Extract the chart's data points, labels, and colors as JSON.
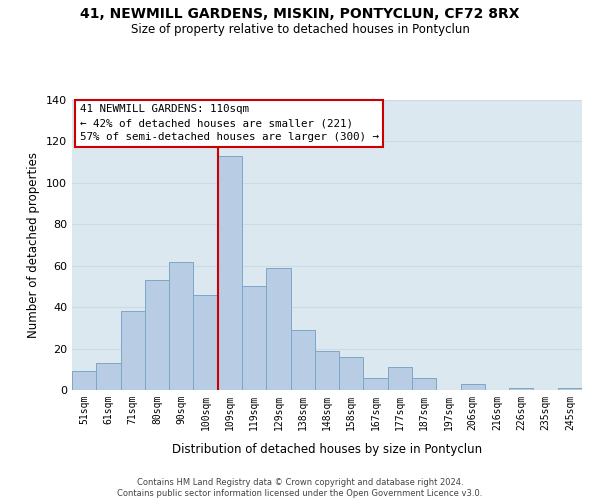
{
  "title": "41, NEWMILL GARDENS, MISKIN, PONTYCLUN, CF72 8RX",
  "subtitle": "Size of property relative to detached houses in Pontyclun",
  "xlabel": "Distribution of detached houses by size in Pontyclun",
  "ylabel": "Number of detached properties",
  "categories": [
    "51sqm",
    "61sqm",
    "71sqm",
    "80sqm",
    "90sqm",
    "100sqm",
    "109sqm",
    "119sqm",
    "129sqm",
    "138sqm",
    "148sqm",
    "158sqm",
    "167sqm",
    "177sqm",
    "187sqm",
    "197sqm",
    "206sqm",
    "216sqm",
    "226sqm",
    "235sqm",
    "245sqm"
  ],
  "values": [
    9,
    13,
    38,
    53,
    62,
    46,
    113,
    50,
    59,
    29,
    19,
    16,
    6,
    11,
    6,
    0,
    3,
    0,
    1,
    0,
    1
  ],
  "bar_color": "#b8cce4",
  "bar_edge_color": "#7ba7c9",
  "vline_color": "#cc0000",
  "ylim": [
    0,
    140
  ],
  "yticks": [
    0,
    20,
    40,
    60,
    80,
    100,
    120,
    140
  ],
  "annotation_title": "41 NEWMILL GARDENS: 110sqm",
  "annotation_line2": "← 42% of detached houses are smaller (221)",
  "annotation_line3": "57% of semi-detached houses are larger (300) →",
  "annotation_box_color": "#ffffff",
  "annotation_box_edge_color": "#cc0000",
  "footer_line1": "Contains HM Land Registry data © Crown copyright and database right 2024.",
  "footer_line2": "Contains public sector information licensed under the Open Government Licence v3.0.",
  "grid_color": "#cdd9e5",
  "background_color": "#dce8f0"
}
